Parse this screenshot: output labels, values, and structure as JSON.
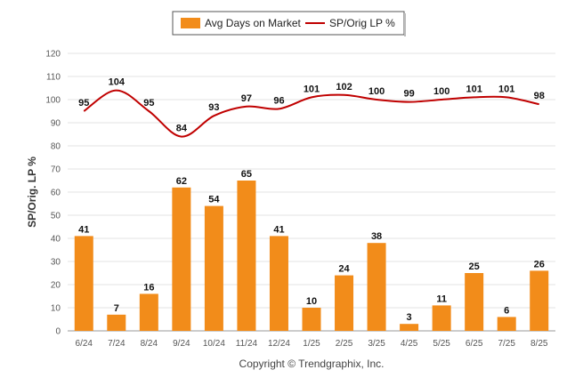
{
  "chart_data": {
    "type": "bar",
    "categories": [
      "6/24",
      "7/24",
      "8/24",
      "9/24",
      "10/24",
      "11/24",
      "12/24",
      "1/25",
      "2/25",
      "3/25",
      "4/25",
      "5/25",
      "6/25",
      "7/25",
      "8/25"
    ],
    "series": [
      {
        "name": "Avg Days on Market",
        "type": "bar",
        "color": "#f28c1a",
        "values": [
          41,
          7,
          16,
          62,
          54,
          65,
          41,
          10,
          24,
          38,
          3,
          11,
          25,
          6,
          26
        ]
      },
      {
        "name": "SP/Orig LP %",
        "type": "line",
        "color": "#c00000",
        "values": [
          95,
          104,
          95,
          84,
          93,
          97,
          96,
          101,
          102,
          100,
          99,
          100,
          101,
          101,
          98
        ]
      }
    ],
    "ylabel": "SP/Orig. LP %",
    "ylim": [
      0,
      120
    ],
    "yticks": [
      0,
      10,
      20,
      30,
      40,
      50,
      60,
      70,
      80,
      90,
      100,
      110,
      120
    ],
    "grid": true,
    "legend_position": "top-center"
  },
  "footer": {
    "copyright": "Copyright © Trendgraphix, Inc."
  }
}
